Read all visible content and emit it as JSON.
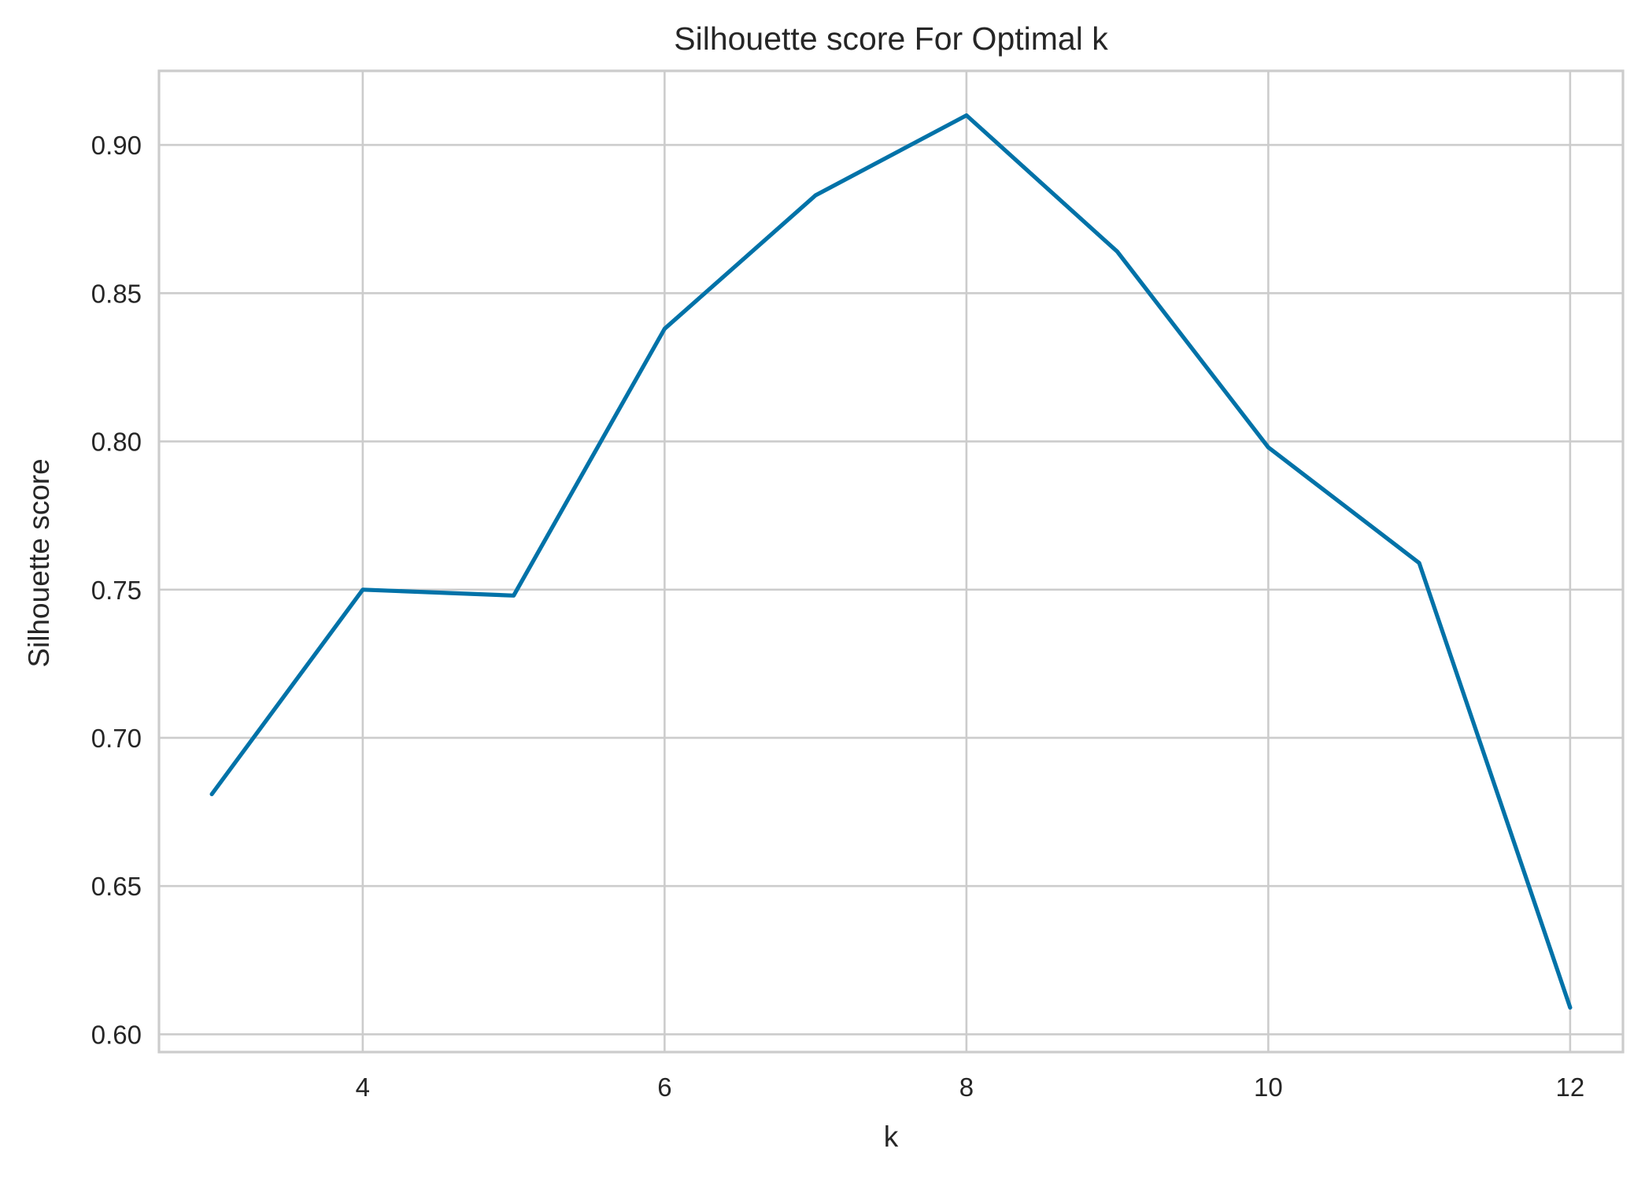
{
  "chart_data": {
    "type": "line",
    "title": "Silhouette score For Optimal k",
    "xlabel": "k",
    "ylabel": "Silhouette score",
    "x": [
      3,
      4,
      5,
      6,
      7,
      8,
      9,
      10,
      11,
      12
    ],
    "series": [
      {
        "values": [
          0.681,
          0.75,
          0.748,
          0.838,
          0.883,
          0.91,
          0.864,
          0.798,
          0.759,
          0.609
        ],
        "color": "#0072a8"
      }
    ],
    "xlim": [
      2.65,
      12.35
    ],
    "ylim": [
      0.594,
      0.925
    ],
    "xticks": [
      4,
      6,
      8,
      10,
      12
    ],
    "xtick_labels": [
      "4",
      "6",
      "8",
      "10",
      "12"
    ],
    "yticks": [
      0.6,
      0.65,
      0.7,
      0.75,
      0.8,
      0.85,
      0.9
    ],
    "ytick_labels": [
      "0.60",
      "0.65",
      "0.70",
      "0.75",
      "0.80",
      "0.85",
      "0.90"
    ],
    "grid": true,
    "legend": "none"
  }
}
